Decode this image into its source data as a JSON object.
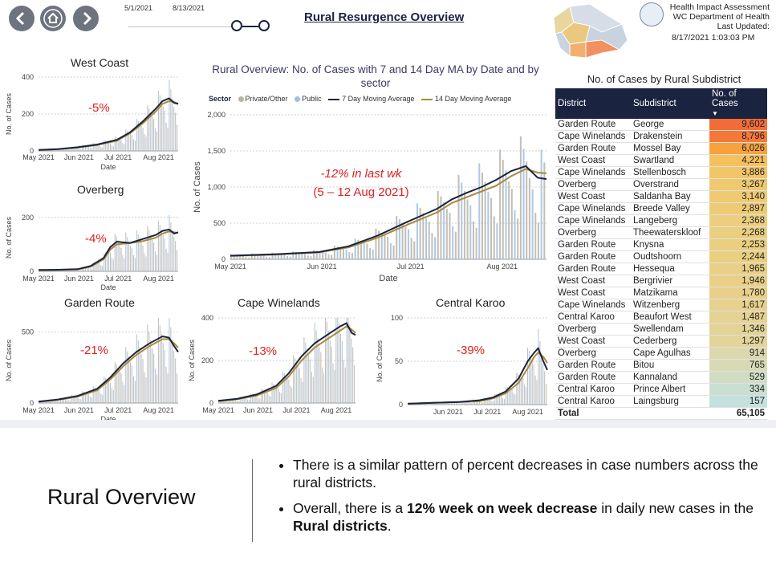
{
  "header": {
    "title": "Rural Resurgence Overview",
    "date_start": "5/1/2021",
    "date_end": "8/13/2021",
    "org_line1": "Health Impact Assessment",
    "org_line2": "WC Department of Health",
    "org_line3": "Last Updated:",
    "updated": "8/17/2021 1:03:03 PM",
    "nav_icons": [
      "back-arrow-icon",
      "home-icon",
      "forward-arrow-icon"
    ]
  },
  "colors": {
    "navy": "#1a2340",
    "gold": "#a88a3c",
    "bar_private": "#b9b3aa",
    "bar_public": "#9fc0e0",
    "accent_red": "#e02020"
  },
  "main_chart": {
    "title_line1": "Rural Overview: No. of Cases with 7 and 14 Day MA by Date and by",
    "title_line2": "sector",
    "legend_sector": "Sector",
    "legend_private": "Private/Other",
    "legend_public": "Public",
    "legend_ma7": "7 Day Moving Average",
    "legend_ma14": "14 Day Moving Average",
    "annotation_line1": "-12% in last wk",
    "annotation_line2": "(5 – 12 Aug 2021)"
  },
  "chart_data": [
    {
      "type": "line",
      "name": "West Coast",
      "title": "West Coast",
      "ylabel": "No. of Cases",
      "xlabel": "Date",
      "ylim": [
        0,
        400
      ],
      "yticks": [
        0,
        200,
        400
      ],
      "xticks": [
        "May 2021",
        "Jun 2021",
        "Jul 2021",
        "Aug 2021"
      ],
      "pct": "-5%",
      "x_days": [
        0,
        15,
        30,
        45,
        60,
        70,
        80,
        90,
        95,
        100,
        104,
        107
      ],
      "ma7": [
        5,
        10,
        20,
        35,
        60,
        100,
        160,
        230,
        270,
        285,
        260,
        255
      ],
      "ma14": [
        4,
        9,
        18,
        32,
        55,
        95,
        150,
        215,
        255,
        270,
        265,
        255
      ]
    },
    {
      "type": "line",
      "name": "Overberg",
      "title": "Overberg",
      "ylabel": "No. of Cases",
      "xlabel": "Date",
      "ylim": [
        0,
        250
      ],
      "yticks": [
        0,
        200
      ],
      "xticks": [
        "May 2021",
        "Jun 2021",
        "Jul 2021",
        "Aug 2021"
      ],
      "pct": "-4%",
      "x_days": [
        0,
        15,
        30,
        40,
        50,
        55,
        60,
        70,
        80,
        90,
        95,
        100,
        104,
        107
      ],
      "ma7": [
        5,
        6,
        8,
        20,
        50,
        90,
        110,
        105,
        120,
        135,
        150,
        155,
        140,
        145
      ],
      "ma14": [
        4,
        5,
        7,
        17,
        45,
        80,
        100,
        105,
        112,
        125,
        140,
        148,
        145,
        142
      ]
    },
    {
      "type": "line",
      "name": "Garden Route",
      "title": "Garden Route",
      "ylabel": "No. of Cases",
      "xlabel": "Date",
      "ylim": [
        0,
        600
      ],
      "yticks": [
        0,
        500
      ],
      "xticks": [
        "May 2021",
        "Jun 2021",
        "Jul 2021",
        "Aug 2021"
      ],
      "pct": "-21%",
      "x_days": [
        0,
        15,
        30,
        45,
        55,
        65,
        75,
        85,
        95,
        100,
        104,
        107
      ],
      "ma7": [
        10,
        25,
        50,
        100,
        180,
        280,
        360,
        420,
        470,
        460,
        400,
        360
      ],
      "ma14": [
        8,
        22,
        45,
        90,
        165,
        260,
        340,
        400,
        450,
        450,
        420,
        390
      ]
    },
    {
      "type": "line",
      "name": "Cape Winelands",
      "title": "Cape Winelands",
      "ylabel": "No. of Cases",
      "xlabel": "",
      "ylim": [
        0,
        400
      ],
      "yticks": [
        0,
        200,
        400
      ],
      "xticks": [
        "May 2021",
        "Jun 2021",
        "Jul 2021",
        "Aug 2021"
      ],
      "pct": "-13%",
      "x_days": [
        0,
        15,
        30,
        45,
        55,
        65,
        75,
        85,
        95,
        100,
        104,
        107
      ],
      "ma7": [
        10,
        20,
        40,
        80,
        140,
        220,
        280,
        320,
        360,
        375,
        330,
        320
      ],
      "ma14": [
        8,
        18,
        35,
        70,
        125,
        200,
        260,
        300,
        340,
        360,
        345,
        330
      ]
    },
    {
      "type": "line",
      "name": "Central Karoo",
      "title": "Central Karoo",
      "ylabel": "No. of Cases",
      "xlabel": "",
      "ylim": [
        0,
        100
      ],
      "yticks": [
        0,
        50,
        100
      ],
      "xticks": [
        "Jun 2021",
        "Jul 2021",
        "Aug 2021"
      ],
      "pct": "-39%",
      "x_days": [
        0,
        20,
        40,
        55,
        65,
        75,
        85,
        92,
        97,
        100,
        104,
        107
      ],
      "ma7": [
        1,
        2,
        3,
        5,
        8,
        15,
        30,
        50,
        60,
        65,
        50,
        40
      ],
      "ma14": [
        1,
        2,
        3,
        4,
        7,
        13,
        25,
        42,
        55,
        60,
        55,
        48
      ]
    },
    {
      "type": "line",
      "name": "Rural Overview",
      "title": "Rural Overview: No. of Cases with 7 and 14 Day MA by Date and by sector",
      "ylabel": "No. of Cases",
      "xlabel": "Date",
      "ylim": [
        0,
        2000
      ],
      "yticks": [
        0,
        500,
        1000,
        1500,
        2000
      ],
      "xticks": [
        "May 2021",
        "Jun 2021",
        "Jul 2021",
        "Aug 2021"
      ],
      "x_days": [
        0,
        15,
        30,
        40,
        50,
        60,
        70,
        75,
        80,
        85,
        90,
        95,
        100,
        104,
        107
      ],
      "ma7": [
        50,
        70,
        100,
        180,
        330,
        520,
        700,
        830,
        920,
        1000,
        1100,
        1220,
        1290,
        1130,
        1110
      ],
      "ma14": [
        45,
        65,
        95,
        165,
        300,
        480,
        650,
        780,
        860,
        940,
        1020,
        1150,
        1250,
        1200,
        1190
      ]
    }
  ],
  "table": {
    "title": "No. of Cases by Rural Subdistrict",
    "col_district": "District",
    "col_subdistrict": "Subdistrict",
    "col_cases": "No. of Cases",
    "rows": [
      [
        "Garden Route",
        "George",
        "9,602",
        "#f26c37"
      ],
      [
        "Cape Winelands",
        "Drakenstein",
        "8,796",
        "#f4783a"
      ],
      [
        "Garden Route",
        "Mossel Bay",
        "6,026",
        "#f7a23e"
      ],
      [
        "West Coast",
        "Swartland",
        "4,221",
        "#f5c160"
      ],
      [
        "Cape Winelands",
        "Stellenbosch",
        "3,886",
        "#f2c568"
      ],
      [
        "Overberg",
        "Overstrand",
        "3,267",
        "#efc970"
      ],
      [
        "West Coast",
        "Saldanha Bay",
        "3,140",
        "#efca72"
      ],
      [
        "Cape Winelands",
        "Breede Valley",
        "2,897",
        "#edcb76"
      ],
      [
        "Cape Winelands",
        "Langeberg",
        "2,368",
        "#ecce7e"
      ],
      [
        "Overberg",
        "Theewaterskloof",
        "2,268",
        "#ebcf80"
      ],
      [
        "Garden Route",
        "Knysna",
        "2,253",
        "#ebcf80"
      ],
      [
        "Garden Route",
        "Oudtshoorn",
        "2,244",
        "#ebcf80"
      ],
      [
        "Garden Route",
        "Hessequa",
        "1,965",
        "#eacf86"
      ],
      [
        "West Coast",
        "Bergrivier",
        "1,946",
        "#eacf86"
      ],
      [
        "West Coast",
        "Matzikama",
        "1,780",
        "#e9d08a"
      ],
      [
        "Cape Winelands",
        "Witzenberg",
        "1,617",
        "#e8d18e"
      ],
      [
        "Central Karoo",
        "Beaufort West",
        "1,487",
        "#e6d292"
      ],
      [
        "Overberg",
        "Swellendam",
        "1,346",
        "#e4d397"
      ],
      [
        "West Coast",
        "Cederberg",
        "1,297",
        "#e3d49a"
      ],
      [
        "Overberg",
        "Cape Agulhas",
        "914",
        "#dcd8ad"
      ],
      [
        "Garden Route",
        "Bitou",
        "765",
        "#d8dab5"
      ],
      [
        "Garden Route",
        "Kannaland",
        "529",
        "#d2dcc2"
      ],
      [
        "Central Karoo",
        "Prince Albert",
        "334",
        "#cadfd3"
      ],
      [
        "Central Karoo",
        "Laingsburg",
        "157",
        "#c4e1dd"
      ]
    ],
    "total_label": "Total",
    "total_value": "65,105"
  },
  "bottom": {
    "title": "Rural Overview",
    "bullet1": "There is a similar pattern of percent decreases in case numbers across the rural districts.",
    "bullet2_pre": "Overall, there is a ",
    "bullet2_bold": "12% week on week decrease",
    "bullet2_mid": " in daily new cases in the ",
    "bullet2_bold2": "Rural districts",
    "bullet2_end": "."
  }
}
